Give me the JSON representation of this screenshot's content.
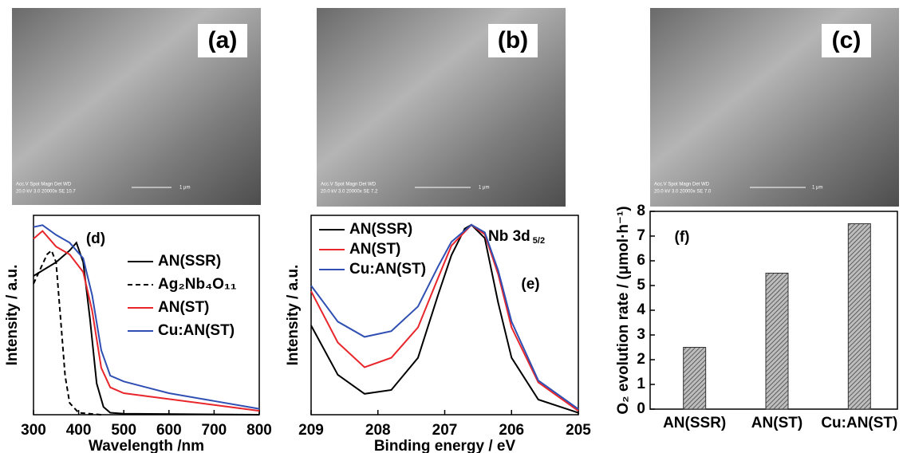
{
  "images": [
    {
      "label": "(a)",
      "info": "Acc.V  Spot Magn   Det  WD",
      "info2": "20.0 kV 3.0  20000x  SE  10.7",
      "scale": "1 μm"
    },
    {
      "label": "(b)",
      "info": "Acc.V  Spot Magn   Det  WD",
      "info2": "20.0 kV 3.0  20000x  SE  7.2",
      "scale": "1 μm"
    },
    {
      "label": "(c)",
      "info": "Acc.V  Spot Magn   Det  WD",
      "info2": "20.0 kV 3.0  20000x  SE  7.0",
      "scale": "1 μm"
    }
  ],
  "chart_data": [
    {
      "type": "line",
      "panel_label": "(d)",
      "xlabel": "Wavelength /nm",
      "ylabel": "Intensity / a.u.",
      "xlim": [
        300,
        800
      ],
      "xticks": [
        300,
        400,
        500,
        600,
        700,
        800
      ],
      "ylim": [
        0,
        1.02
      ],
      "legend": "right",
      "series": [
        {
          "name": "AN(SSR)",
          "color": "#000000",
          "dash": false,
          "x": [
            300,
            350,
            380,
            395,
            410,
            425,
            440,
            455,
            470,
            500,
            800
          ],
          "values": [
            0.71,
            0.78,
            0.84,
            0.88,
            0.78,
            0.49,
            0.16,
            0.04,
            0.01,
            0.005,
            0
          ]
        },
        {
          "name": "Ag₂Nb₄O₁₁",
          "color": "#000000",
          "dash": true,
          "x": [
            300,
            330,
            340,
            350,
            360,
            370,
            380,
            400,
            450
          ],
          "values": [
            0.67,
            0.82,
            0.84,
            0.78,
            0.49,
            0.2,
            0.06,
            0.01,
            0
          ]
        },
        {
          "name": "AN(ST)",
          "color": "#e8262b",
          "dash": false,
          "x": [
            300,
            320,
            350,
            380,
            410,
            430,
            450,
            470,
            500,
            600,
            700,
            800
          ],
          "values": [
            0.9,
            0.94,
            0.86,
            0.82,
            0.73,
            0.53,
            0.24,
            0.14,
            0.11,
            0.08,
            0.05,
            0.02
          ]
        },
        {
          "name": "Cu:AN(ST)",
          "color": "#2f4fb3",
          "dash": false,
          "x": [
            300,
            320,
            350,
            380,
            410,
            430,
            450,
            470,
            500,
            550,
            600,
            700,
            800
          ],
          "values": [
            0.96,
            0.97,
            0.92,
            0.88,
            0.8,
            0.61,
            0.33,
            0.2,
            0.17,
            0.14,
            0.11,
            0.07,
            0.03
          ]
        }
      ]
    },
    {
      "type": "line",
      "panel_label": "(e)",
      "xlabel": "Binding energy / eV",
      "ylabel": "Intensity / a.u.",
      "annotation": {
        "text": "Nb 3d",
        "subscript": "5/2"
      },
      "xlim": [
        209,
        205
      ],
      "xticks": [
        209,
        208,
        207,
        206,
        205
      ],
      "ylim": [
        0,
        1.05
      ],
      "legend": "upper left",
      "series": [
        {
          "name": "AN(SSR)",
          "color": "#000000",
          "dash": false,
          "x": [
            209,
            208.6,
            208.2,
            207.8,
            207.4,
            207.1,
            206.9,
            206.7,
            206.6,
            206.4,
            206.2,
            206,
            205.6,
            205
          ],
          "values": [
            0.47,
            0.21,
            0.11,
            0.13,
            0.3,
            0.63,
            0.84,
            0.98,
            1.0,
            0.93,
            0.59,
            0.3,
            0.08,
            0.01
          ]
        },
        {
          "name": "AN(ST)",
          "color": "#e8262b",
          "dash": false,
          "x": [
            209,
            208.6,
            208.2,
            207.8,
            207.4,
            207.1,
            206.9,
            206.6,
            206.4,
            206.2,
            206,
            205.6,
            205
          ],
          "values": [
            0.65,
            0.38,
            0.25,
            0.3,
            0.46,
            0.72,
            0.89,
            1.0,
            0.95,
            0.74,
            0.46,
            0.17,
            0.02
          ]
        },
        {
          "name": "Cu:AN(ST)",
          "color": "#2f4fb3",
          "dash": false,
          "x": [
            209,
            208.6,
            208.2,
            207.8,
            207.4,
            207.1,
            206.9,
            206.6,
            206.4,
            206.2,
            206,
            205.6,
            205
          ],
          "values": [
            0.68,
            0.49,
            0.41,
            0.44,
            0.57,
            0.78,
            0.91,
            1.0,
            0.96,
            0.76,
            0.49,
            0.18,
            0.03
          ]
        }
      ]
    },
    {
      "type": "bar",
      "panel_label": "(f)",
      "ylabel": "O₂ evolution rate / (μmol·h⁻¹)",
      "categories": [
        "AN(SSR)",
        "AN(ST)",
        "Cu:AN(ST)"
      ],
      "values": [
        2.5,
        5.5,
        7.5
      ],
      "color": "#8c8c8c",
      "ylim": [
        0,
        8
      ],
      "yticks": [
        0,
        1,
        2,
        3,
        4,
        5,
        6,
        7,
        8
      ]
    }
  ]
}
